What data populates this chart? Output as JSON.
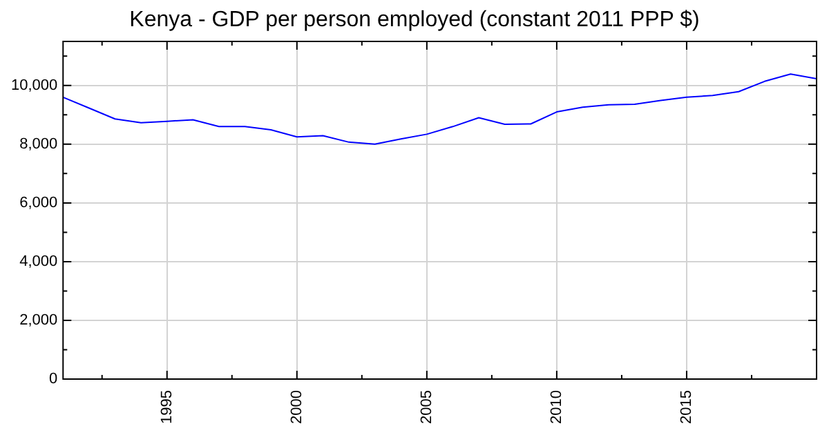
{
  "chart_data": {
    "type": "line",
    "title": "Kenya - GDP per person employed (constant 2011 PPP $)",
    "x": [
      1991,
      1992,
      1993,
      1994,
      1995,
      1996,
      1997,
      1998,
      1999,
      2000,
      2001,
      2002,
      2003,
      2004,
      2005,
      2006,
      2007,
      2008,
      2009,
      2010,
      2011,
      2012,
      2013,
      2014,
      2015,
      2016,
      2017,
      2018,
      2019,
      2020
    ],
    "series": [
      {
        "color": "#0000ff",
        "values": [
          9600,
          9230,
          8860,
          8730,
          8780,
          8830,
          8600,
          8600,
          8490,
          8250,
          8290,
          8070,
          8000,
          8180,
          8340,
          8600,
          8900,
          8680,
          8690,
          9100,
          9260,
          9340,
          9360,
          9490,
          9600,
          9660,
          9790,
          10140,
          10390,
          10230
        ]
      }
    ],
    "xlim": [
      1991,
      2020
    ],
    "xticks": [
      {
        "value": 1992.5,
        "label": null
      },
      1995,
      {
        "value": 1997.5,
        "label": null
      },
      2000,
      {
        "value": 2002.5,
        "label": null
      },
      2005,
      {
        "value": 2007.5,
        "label": null
      },
      2010,
      {
        "value": 2012.5,
        "label": null
      },
      2015,
      {
        "value": 2017.5,
        "label": null
      }
    ],
    "ylim": [
      0,
      11500
    ],
    "yticks": [
      {
        "value": 0,
        "label": "0"
      },
      {
        "value": 1000,
        "label": null
      },
      {
        "value": 2000,
        "label": "2,000"
      },
      {
        "value": 3000,
        "label": null
      },
      {
        "value": 4000,
        "label": "4,000"
      },
      {
        "value": 5000,
        "label": null
      },
      {
        "value": 6000,
        "label": "6,000"
      },
      {
        "value": 7000,
        "label": null
      },
      {
        "value": 8000,
        "label": "8,000"
      },
      {
        "value": 9000,
        "label": null
      },
      {
        "value": 10000,
        "label": "10,000"
      },
      {
        "value": 11000,
        "label": null
      }
    ],
    "grid": true,
    "legend": false,
    "marker": "none",
    "line_style": "solid"
  }
}
